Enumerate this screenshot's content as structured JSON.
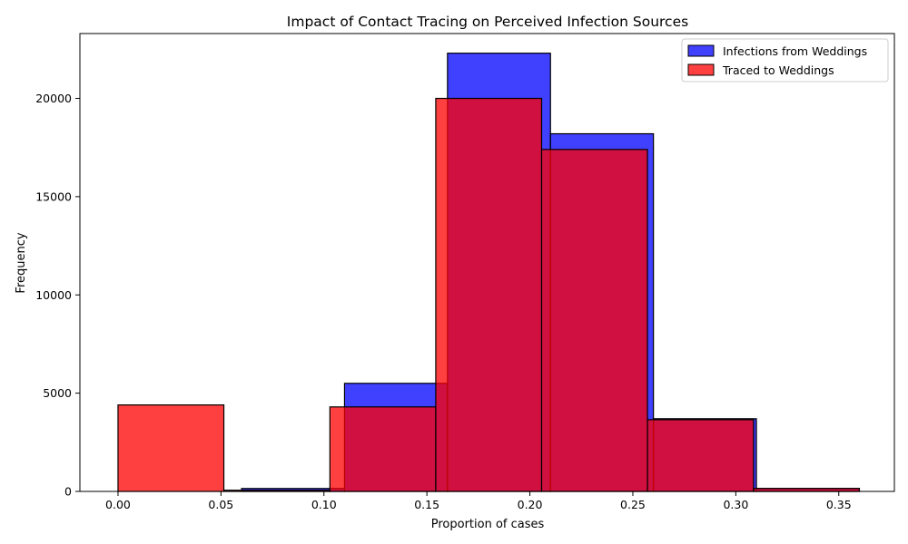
{
  "chart_data": {
    "type": "histogram",
    "title": "Impact of Contact Tracing on Perceived Infection Sources",
    "xlabel": "Proportion of cases",
    "ylabel": "Frequency",
    "xlim": [
      -0.0185,
      0.377
    ],
    "ylim": [
      0,
      23300
    ],
    "x_ticks": [
      0.0,
      0.05,
      0.1,
      0.15,
      0.2,
      0.25,
      0.3,
      0.35
    ],
    "x_tick_labels": [
      "0.00",
      "0.05",
      "0.10",
      "0.15",
      "0.20",
      "0.25",
      "0.30",
      "0.35"
    ],
    "y_ticks": [
      0,
      5000,
      10000,
      15000,
      20000
    ],
    "y_tick_labels": [
      "0",
      "5000",
      "10000",
      "15000",
      "20000"
    ],
    "grid": false,
    "legend_position": "upper right",
    "series": [
      {
        "name": "Infections from Weddings",
        "color": "#0000ff",
        "opacity": 0.75,
        "bins": [
          {
            "x0": 0.06,
            "x1": 0.11,
            "value": 150
          },
          {
            "x0": 0.11,
            "x1": 0.16,
            "value": 5500
          },
          {
            "x0": 0.16,
            "x1": 0.21,
            "value": 22300
          },
          {
            "x0": 0.21,
            "x1": 0.26,
            "value": 18200
          },
          {
            "x0": 0.26,
            "x1": 0.31,
            "value": 3700
          },
          {
            "x0": 0.31,
            "x1": 0.36,
            "value": 150
          }
        ]
      },
      {
        "name": "Traced to Weddings",
        "color": "#ff0000",
        "opacity": 0.75,
        "bins": [
          {
            "x0": 0.0,
            "x1": 0.0514,
            "value": 4400
          },
          {
            "x0": 0.0514,
            "x1": 0.1029,
            "value": 60
          },
          {
            "x0": 0.1029,
            "x1": 0.1543,
            "value": 4300
          },
          {
            "x0": 0.1543,
            "x1": 0.2057,
            "value": 20000
          },
          {
            "x0": 0.2057,
            "x1": 0.2571,
            "value": 17400
          },
          {
            "x0": 0.2571,
            "x1": 0.3086,
            "value": 3650
          },
          {
            "x0": 0.3086,
            "x1": 0.36,
            "value": 150
          }
        ]
      }
    ]
  }
}
